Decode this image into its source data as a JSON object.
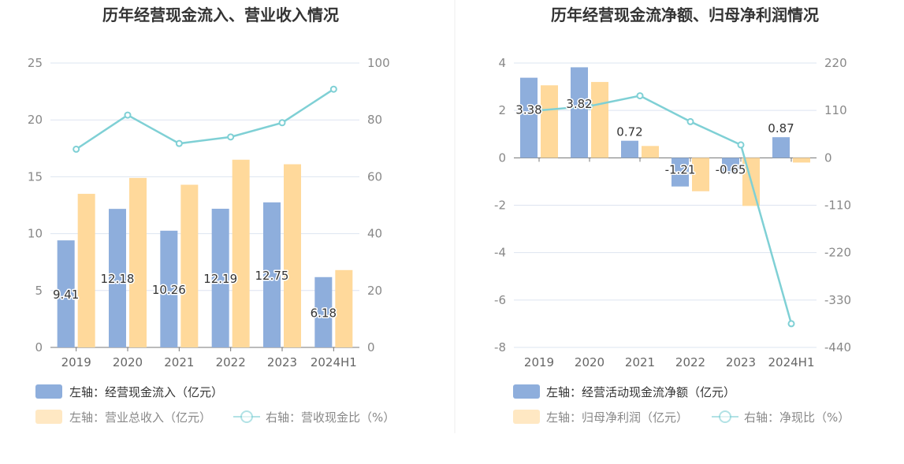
{
  "colors": {
    "bar_primary": "#8eaedc",
    "bar_secondary": "#ffd99b",
    "line": "#7fd0d5",
    "grid": "#dde4f0",
    "divider": "#eeeeee"
  },
  "chart_data": [
    {
      "type": "bar",
      "title": "历年经营现金流入、营业收入情况",
      "categories": [
        "2019",
        "2020",
        "2021",
        "2022",
        "2023",
        "2024H1"
      ],
      "y_left": {
        "ticks": [
          "0",
          "5",
          "10",
          "15",
          "20",
          "25"
        ],
        "range": [
          0,
          25
        ]
      },
      "y_right": {
        "ticks": [
          "0",
          "20",
          "40",
          "60",
          "80",
          "100"
        ],
        "range": [
          0,
          100
        ]
      },
      "grid": true,
      "series": [
        {
          "name": "左轴：经营现金流入（亿元）",
          "type": "bar",
          "axis": "left",
          "values": [
            9.41,
            12.18,
            10.26,
            12.19,
            12.75,
            6.18
          ],
          "labels": [
            "9.41",
            "12.18",
            "10.26",
            "12.19",
            "12.75",
            "6.18"
          ]
        },
        {
          "name": "左轴：营业总收入（亿元）",
          "type": "bar",
          "axis": "left",
          "values": [
            13.5,
            14.9,
            14.3,
            16.5,
            16.1,
            6.8
          ]
        },
        {
          "name": "右轴：营收现金比（%）",
          "type": "line",
          "axis": "right",
          "values": [
            69.7,
            81.7,
            71.7,
            74.0,
            79.0,
            90.8
          ]
        }
      ],
      "legend_position": "bottom-left"
    },
    {
      "type": "bar",
      "title": "历年经营现金流净额、归母净利润情况",
      "categories": [
        "2019",
        "2020",
        "2021",
        "2022",
        "2023",
        "2024H1"
      ],
      "y_left": {
        "ticks": [
          "-8",
          "-6",
          "-4",
          "-2",
          "0",
          "2",
          "4"
        ],
        "range": [
          -8,
          4
        ]
      },
      "y_right": {
        "ticks": [
          "-440",
          "-330",
          "-220",
          "-110",
          "0",
          "110",
          "220"
        ],
        "range": [
          -440,
          220
        ]
      },
      "grid": true,
      "series": [
        {
          "name": "左轴：经营活动现金流净额（亿元）",
          "type": "bar",
          "axis": "left",
          "values": [
            3.38,
            3.82,
            0.72,
            -1.21,
            -0.65,
            0.87
          ],
          "labels": [
            "3.38",
            "3.82",
            "0.72",
            "-1.21",
            "-0.65",
            "0.87"
          ]
        },
        {
          "name": "左轴：归母净利润（亿元）",
          "type": "bar",
          "axis": "left",
          "values": [
            3.06,
            3.2,
            0.5,
            -1.41,
            -2.03,
            -0.2
          ]
        },
        {
          "name": "右轴：净现比（%）",
          "type": "line",
          "axis": "right",
          "values": [
            110,
            120,
            144,
            84,
            30,
            -385
          ]
        }
      ],
      "legend_position": "bottom-left"
    }
  ]
}
